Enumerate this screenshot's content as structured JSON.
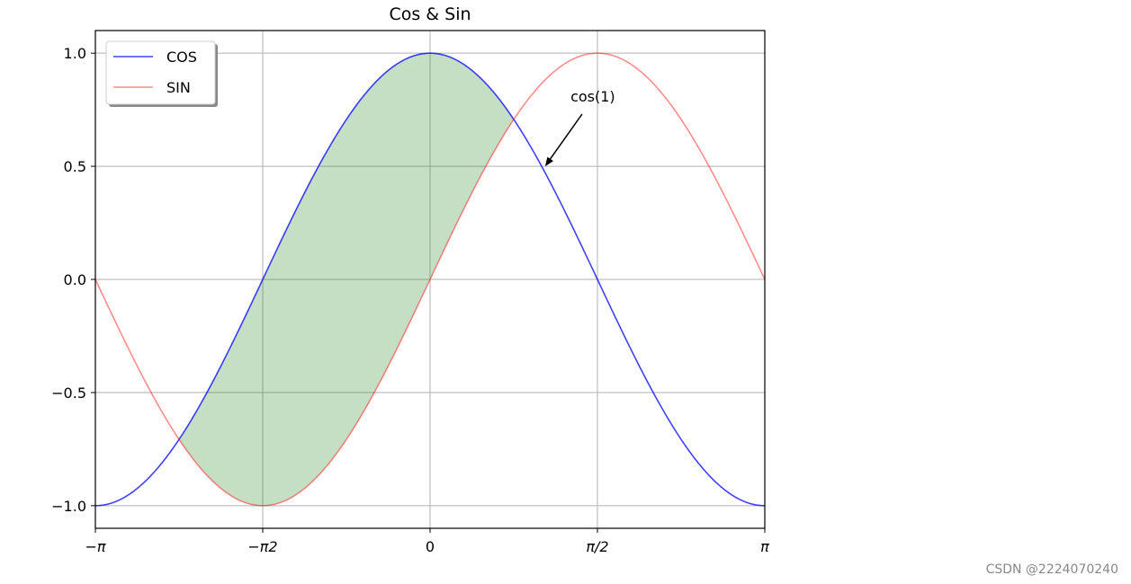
{
  "chart_data": {
    "type": "line",
    "title": "Cos & Sin",
    "xlabel": "",
    "ylabel": "",
    "xlim": [
      -3.14159,
      3.14159
    ],
    "ylim": [
      -1.1,
      1.1
    ],
    "grid": true,
    "legend_position": "upper-left",
    "x_ticks": [
      {
        "value": -3.14159,
        "label": "−π"
      },
      {
        "value": -1.5708,
        "label": "−π2"
      },
      {
        "value": 0,
        "label": "0"
      },
      {
        "value": 1.5708,
        "label": "π/2"
      },
      {
        "value": 3.14159,
        "label": "π"
      }
    ],
    "y_ticks": [
      {
        "value": -1.0,
        "label": "−1.0"
      },
      {
        "value": -0.5,
        "label": "−0.5"
      },
      {
        "value": 0.0,
        "label": "0.0"
      },
      {
        "value": 0.5,
        "label": "0.5"
      },
      {
        "value": 1.0,
        "label": "1.0"
      }
    ],
    "series": [
      {
        "name": "COS",
        "function": "cos",
        "color": "#0000ff",
        "opacity": 0.75
      },
      {
        "name": "SIN",
        "function": "sin",
        "color": "#ff0000",
        "opacity": 0.45
      }
    ],
    "fill_between": {
      "where": "cos >= sin",
      "x_range": [
        -2.356,
        0.785
      ],
      "color": "#2e8b2e",
      "opacity": 0.28
    },
    "annotation": {
      "text": "cos(1)",
      "point": [
        1.08,
        0.5
      ]
    }
  },
  "watermark": "CSDN @2224070240"
}
